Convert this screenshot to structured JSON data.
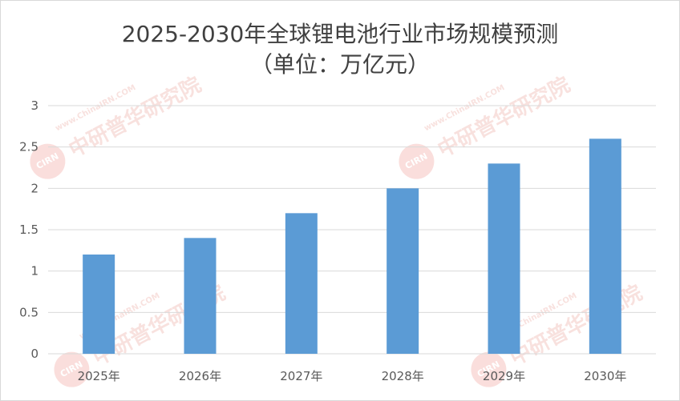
{
  "chart_data": {
    "type": "bar",
    "title": "2025-2030年全球锂电池行业市场规模预测",
    "subtitle": "（单位：万亿元）",
    "categories": [
      "2025年",
      "2026年",
      "2027年",
      "2028年",
      "2029年",
      "2030年"
    ],
    "values": [
      1.2,
      1.4,
      1.7,
      2.0,
      2.3,
      2.6
    ],
    "ylim": [
      0,
      3
    ],
    "yticks": [
      "0",
      "0.5",
      "1",
      "1.5",
      "2",
      "2.5",
      "3"
    ],
    "xlabel": "",
    "ylabel": "",
    "grid": true,
    "legend": "none",
    "bar_color": "#5b9bd5"
  },
  "watermark": {
    "logo": "CIRN",
    "text": "中研普华研究院",
    "url": "www.ChinaIRN.COM"
  }
}
